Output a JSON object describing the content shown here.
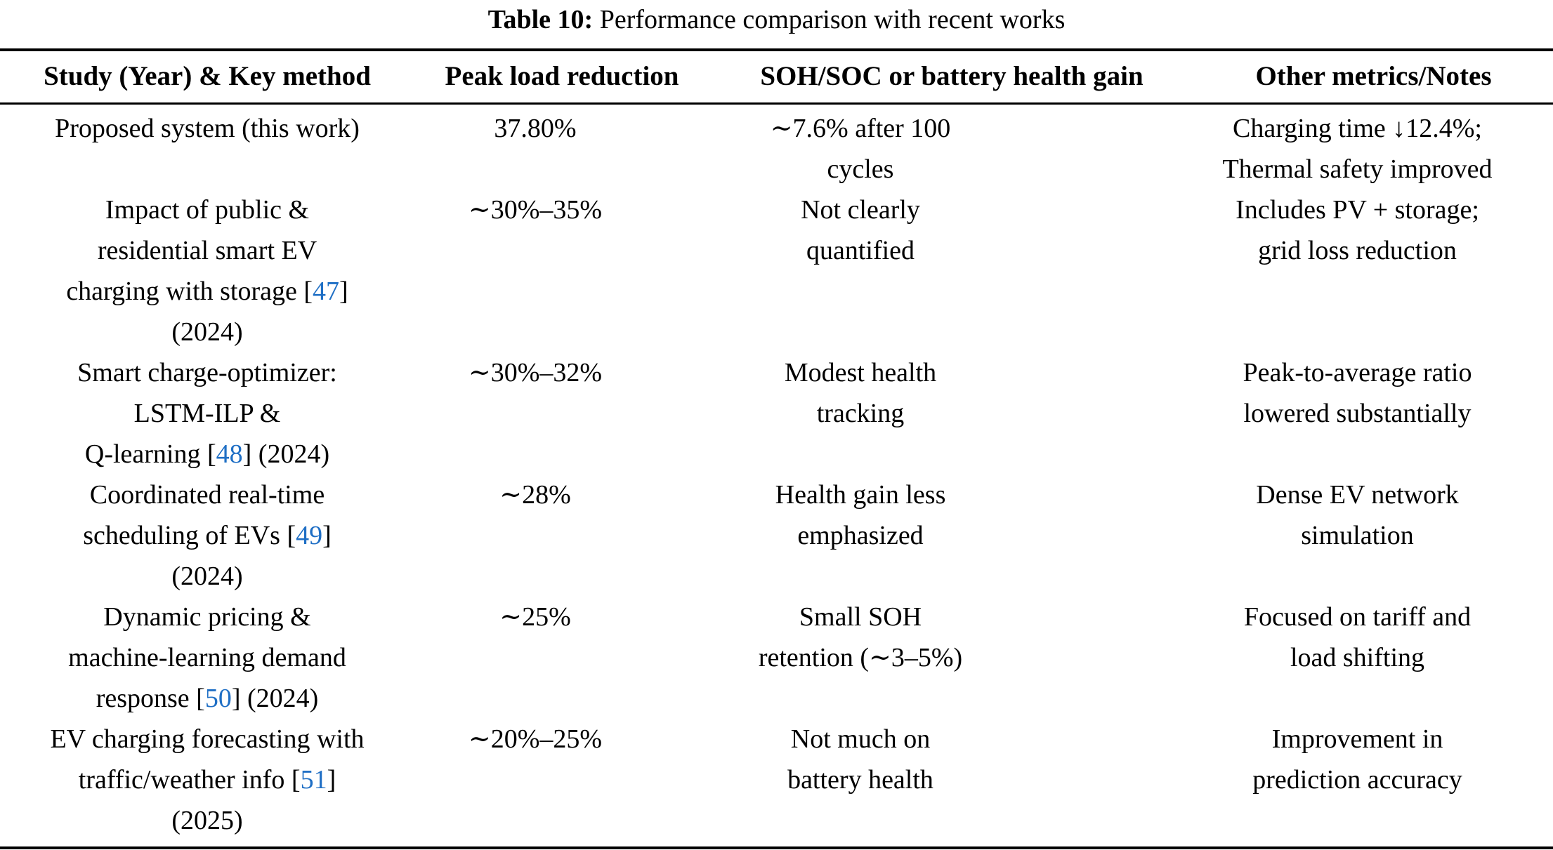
{
  "caption": {
    "label": "Table 10:",
    "text": "Performance comparison with recent works"
  },
  "table": {
    "columns": [
      "Study (Year) & Key method",
      "Peak load reduction",
      "SOH/SOC or battery health gain",
      "Other metrics/Notes"
    ],
    "rows": [
      {
        "study_lines": [
          "Proposed system (this work)"
        ],
        "peak_load_reduction": "37.80%",
        "soh_lines": [
          "∼7.6% after 100",
          "cycles"
        ],
        "notes_lines": [
          "Charging time ↓12.4%;",
          "Thermal safety improved"
        ]
      },
      {
        "study_lines": [
          "Impact of public &",
          "residential smart EV",
          "charging with storage [47]",
          "(2024)"
        ],
        "peak_load_reduction": "∼30%–35%",
        "soh_lines": [
          "Not clearly",
          "quantified"
        ],
        "notes_lines": [
          "Includes PV + storage;",
          "grid loss reduction"
        ]
      },
      {
        "study_lines": [
          "Smart charge-optimizer:",
          "LSTM-ILP &",
          "Q-learning [48] (2024)"
        ],
        "peak_load_reduction": "∼30%–32%",
        "soh_lines": [
          "Modest health",
          "tracking"
        ],
        "notes_lines": [
          "Peak-to-average ratio",
          "lowered substantially"
        ]
      },
      {
        "study_lines": [
          "Coordinated real-time",
          "scheduling of EVs [49]",
          "(2024)"
        ],
        "peak_load_reduction": "∼28%",
        "soh_lines": [
          "Health gain less",
          "emphasized"
        ],
        "notes_lines": [
          "Dense EV network",
          "simulation"
        ]
      },
      {
        "study_lines": [
          "Dynamic pricing &",
          "machine-learning demand",
          "response [50] (2024)"
        ],
        "peak_load_reduction": "∼25%",
        "soh_lines": [
          "Small SOH",
          "retention (∼3–5%)"
        ],
        "notes_lines": [
          "Focused on tariff and",
          "load shifting"
        ]
      },
      {
        "study_lines": [
          "EV charging forecasting with",
          "traffic/weather info [51]",
          "(2025)"
        ],
        "peak_load_reduction": "∼20%–25%",
        "soh_lines": [
          "Not much on",
          "battery health"
        ],
        "notes_lines": [
          "Improvement in",
          "prediction accuracy"
        ]
      }
    ]
  },
  "colors": {
    "background": "#ffffff",
    "text": "#000000",
    "rule": "#000000",
    "citation_link": "#1f6fc5"
  }
}
